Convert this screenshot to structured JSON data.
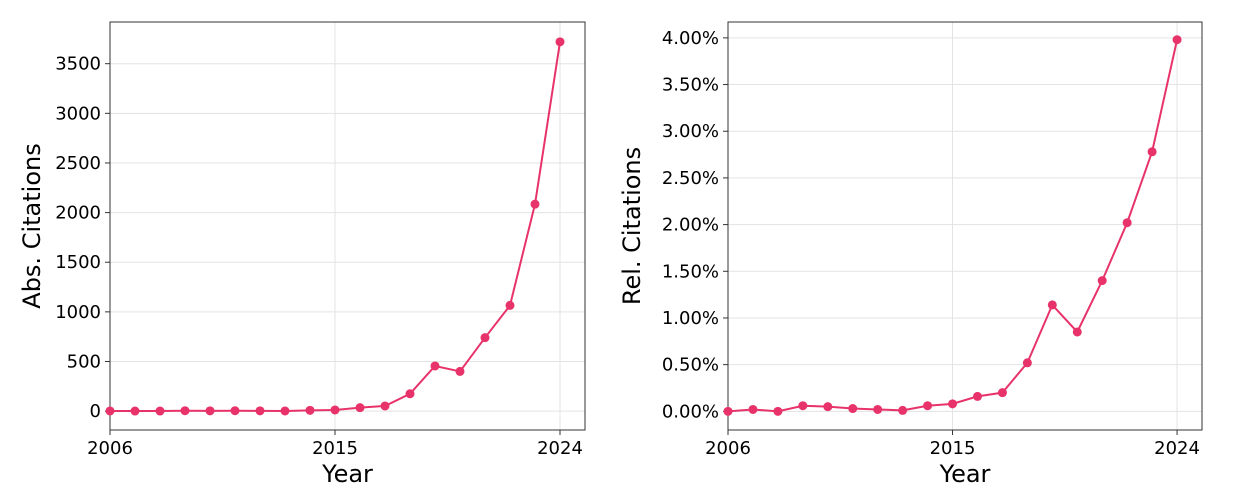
{
  "chart_data": [
    {
      "type": "line",
      "xlabel": "Year",
      "ylabel": "Abs. Citations",
      "x_ticks": [
        2006,
        2015,
        2024
      ],
      "y_ticks": [
        0,
        500,
        1000,
        1500,
        2000,
        2500,
        3000,
        3500
      ],
      "y_tick_labels": [
        "0",
        "500",
        "1000",
        "1500",
        "2000",
        "2500",
        "3000",
        "3500"
      ],
      "x_tick_labels": [
        "2006",
        "2015",
        "2024"
      ],
      "xlim": [
        2006,
        2025
      ],
      "ylim": [
        -190,
        3920
      ],
      "grid": true,
      "color": "#e8336a",
      "series": [
        {
          "x": [
            2006,
            2007,
            2008,
            2009,
            2010,
            2011,
            2012,
            2013,
            2014,
            2015,
            2016,
            2017,
            2018,
            2019,
            2020,
            2021,
            2022,
            2023,
            2024
          ],
          "values": [
            2,
            1,
            1,
            4,
            3,
            4,
            3,
            2,
            8,
            12,
            35,
            52,
            175,
            455,
            400,
            740,
            1065,
            2085,
            3720
          ]
        }
      ]
    },
    {
      "type": "line",
      "xlabel": "Year",
      "ylabel": "Rel. Citations",
      "x_ticks": [
        2006,
        2015,
        2024
      ],
      "x_tick_labels": [
        "2006",
        "2015",
        "2024"
      ],
      "y_ticks": [
        0,
        0.5,
        1.0,
        1.5,
        2.0,
        2.5,
        3.0,
        3.5,
        4.0
      ],
      "y_tick_labels": [
        "0.00%",
        "0.50%",
        "1.00%",
        "1.50%",
        "2.00%",
        "2.50%",
        "3.00%",
        "3.50%",
        "4.00%"
      ],
      "xlim": [
        2006,
        2025
      ],
      "ylim": [
        -0.2,
        4.17
      ],
      "grid": true,
      "color": "#e8336a",
      "series": [
        {
          "x": [
            2006,
            2007,
            2008,
            2009,
            2010,
            2011,
            2012,
            2013,
            2014,
            2015,
            2016,
            2017,
            2018,
            2019,
            2020,
            2021,
            2022,
            2023,
            2024
          ],
          "values": [
            0.0,
            0.02,
            0.0,
            0.06,
            0.05,
            0.03,
            0.02,
            0.01,
            0.06,
            0.08,
            0.16,
            0.2,
            0.52,
            1.14,
            0.85,
            1.4,
            2.02,
            2.78,
            3.98
          ]
        }
      ]
    }
  ]
}
